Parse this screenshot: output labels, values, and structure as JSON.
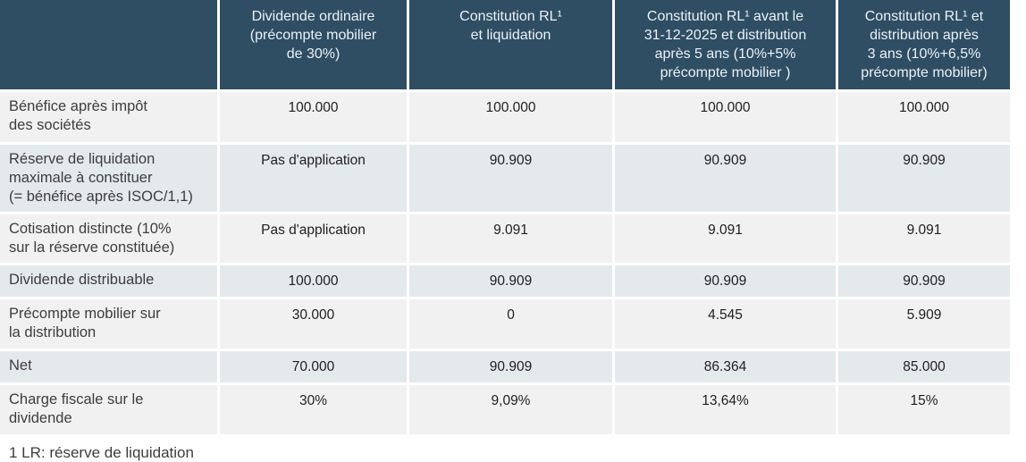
{
  "table": {
    "columns": [
      {
        "label": ""
      },
      {
        "label": "Dividende ordinaire\n(précompte mobilier\nde 30%)"
      },
      {
        "label": "Constitution RL¹\net liquidation"
      },
      {
        "label": "Constitution RL¹ avant le\n31-12-2025 et distribution\naprès 5 ans (10%+5%\nprécompte mobilier )"
      },
      {
        "label": "Constitution RL¹ et\ndistribution après\n3 ans (10%+6,5%\nprécompte mobilier)"
      }
    ],
    "rows": [
      {
        "label": "Bénéfice après impôt\ndes sociétés",
        "values": [
          "100.000",
          "100.000",
          "100.000",
          "100.000"
        ]
      },
      {
        "label": "Réserve de liquidation\nmaximale à constituer\n(= bénéfice après ISOC/1,1)",
        "values": [
          "Pas d'application",
          "90.909",
          "90.909",
          "90.909"
        ]
      },
      {
        "label": "Cotisation distincte (10%\nsur la réserve constituée)",
        "values": [
          "Pas d'application",
          "9.091",
          "9.091",
          "9.091"
        ]
      },
      {
        "label": "Dividende distribuable",
        "values": [
          "100.000",
          "90.909",
          "90.909",
          "90.909"
        ]
      },
      {
        "label": "Précompte mobilier sur\nla distribution",
        "values": [
          "30.000",
          "0",
          "4.545",
          "5.909"
        ]
      },
      {
        "label": "Net",
        "values": [
          "70.000",
          "90.909",
          "86.364",
          "85.000"
        ]
      },
      {
        "label": "Charge fiscale sur le\ndividende",
        "values": [
          "30%",
          "9,09%",
          "13,64%",
          "15%"
        ]
      }
    ]
  },
  "footnote": "1 LR: réserve de liquidation",
  "colors": {
    "header_bg": "#2F4D63",
    "header_text": "#EAF2F7",
    "row_light": "#F2F1F1",
    "row_dark": "#E4E9EC",
    "label_text": "#3D3D3D",
    "value_text": "#1F1F1F"
  }
}
